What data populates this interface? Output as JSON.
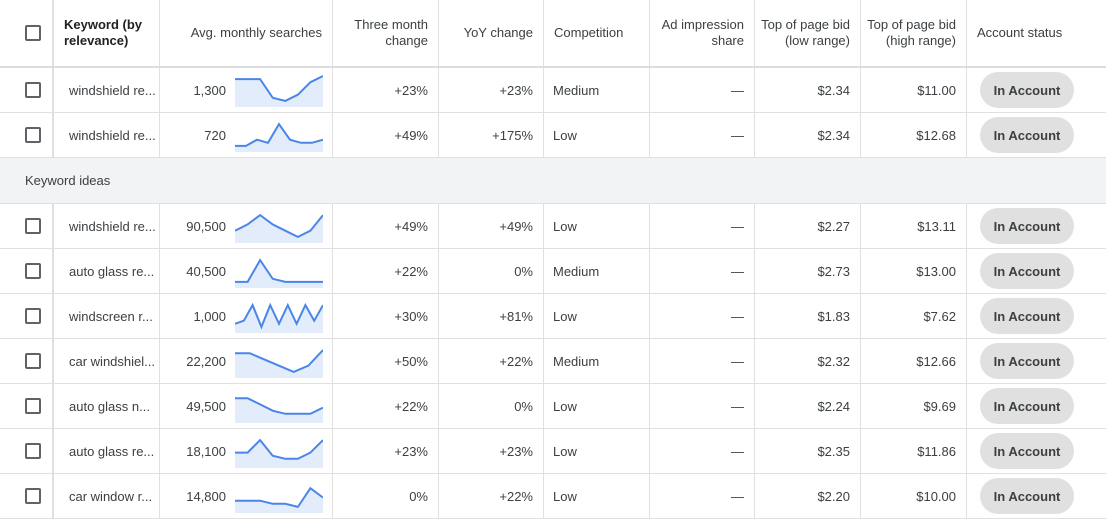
{
  "headers": {
    "keyword": "Keyword (by relevance)",
    "avg_searches": "Avg. monthly searches",
    "three_month": "Three month change",
    "yoy": "YoY change",
    "competition": "Competition",
    "ad_impression": "Ad impression share",
    "bid_low": "Top of page bid (low range)",
    "bid_high": "Top of page bid (high range)",
    "account_status": "Account status"
  },
  "section_label": "Keyword ideas",
  "account_rows": [
    {
      "keyword": "windshield re...",
      "searches": "1,300",
      "three_month": "+23%",
      "yoy": "+23%",
      "competition": "Medium",
      "ad_share": "—",
      "bid_low": "$2.34",
      "bid_high": "$11.00",
      "status": "In Account",
      "trend": [
        8,
        8,
        8,
        2,
        1,
        3,
        7,
        9
      ]
    },
    {
      "keyword": "windshield re...",
      "searches": "720",
      "three_month": "+49%",
      "yoy": "+175%",
      "competition": "Low",
      "ad_share": "—",
      "bid_low": "$2.34",
      "bid_high": "$12.68",
      "status": "In Account",
      "trend": [
        1,
        1,
        3,
        2,
        8,
        3,
        2,
        2,
        3
      ]
    }
  ],
  "idea_rows": [
    {
      "keyword": "windshield re...",
      "searches": "90,500",
      "three_month": "+49%",
      "yoy": "+49%",
      "competition": "Low",
      "ad_share": "—",
      "bid_low": "$2.27",
      "bid_high": "$13.11",
      "status": "In Account",
      "trend": [
        3,
        5,
        8,
        5,
        3,
        1,
        3,
        8
      ]
    },
    {
      "keyword": "auto glass re...",
      "searches": "40,500",
      "three_month": "+22%",
      "yoy": "0%",
      "competition": "Medium",
      "ad_share": "—",
      "bid_low": "$2.73",
      "bid_high": "$13.00",
      "status": "In Account",
      "trend": [
        1,
        1,
        8,
        2,
        1,
        1,
        1,
        1
      ]
    },
    {
      "keyword": "windscreen r...",
      "searches": "1,000",
      "three_month": "+30%",
      "yoy": "+81%",
      "competition": "Low",
      "ad_share": "—",
      "bid_low": "$1.83",
      "bid_high": "$7.62",
      "status": "In Account",
      "trend": [
        2,
        3,
        8,
        1,
        8,
        2,
        8,
        2,
        8,
        3,
        8
      ]
    },
    {
      "keyword": "car windshiel...",
      "searches": "22,200",
      "three_month": "+50%",
      "yoy": "+22%",
      "competition": "Medium",
      "ad_share": "—",
      "bid_low": "$2.32",
      "bid_high": "$12.66",
      "status": "In Account",
      "trend": [
        7,
        7,
        5,
        3,
        1,
        3,
        8
      ]
    },
    {
      "keyword": "auto glass n...",
      "searches": "49,500",
      "three_month": "+22%",
      "yoy": "0%",
      "competition": "Low",
      "ad_share": "—",
      "bid_low": "$2.24",
      "bid_high": "$9.69",
      "status": "In Account",
      "trend": [
        7,
        7,
        5,
        3,
        2,
        2,
        2,
        4
      ]
    },
    {
      "keyword": "auto glass re...",
      "searches": "18,100",
      "three_month": "+23%",
      "yoy": "+23%",
      "competition": "Low",
      "ad_share": "—",
      "bid_low": "$2.35",
      "bid_high": "$11.86",
      "status": "In Account",
      "trend": [
        4,
        4,
        8,
        3,
        2,
        2,
        4,
        8
      ]
    },
    {
      "keyword": "car window r...",
      "searches": "14,800",
      "three_month": "0%",
      "yoy": "+22%",
      "competition": "Low",
      "ad_share": "—",
      "bid_low": "$2.20",
      "bid_high": "$10.00",
      "status": "In Account",
      "trend": [
        3,
        3,
        3,
        2,
        2,
        1,
        7,
        4
      ]
    }
  ],
  "colors": {
    "spark_line": "#4a86e8",
    "spark_fill": "#e3ecfb",
    "pill_bg": "#e0e0e0",
    "section_bg": "#f1f3f4"
  }
}
